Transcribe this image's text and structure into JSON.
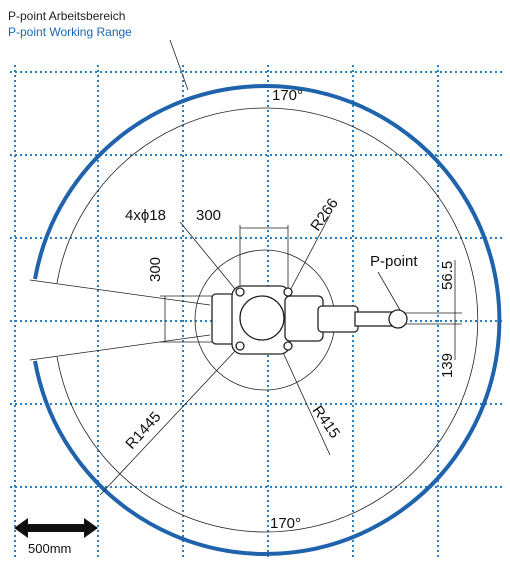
{
  "header": {
    "title_de": "P-point Arbeitsbereich",
    "title_en": "P-point Working Range"
  },
  "labels": {
    "angle_top": "170°",
    "angle_bottom": "170°",
    "holes": "4xϕ18",
    "width": "300",
    "height": "300",
    "r_inner": "R266",
    "r_base": "R415",
    "r_outer": "R1445",
    "p_point": "P-point",
    "offset_up": "56.5",
    "offset_down": "139",
    "scale": "500mm"
  }
}
